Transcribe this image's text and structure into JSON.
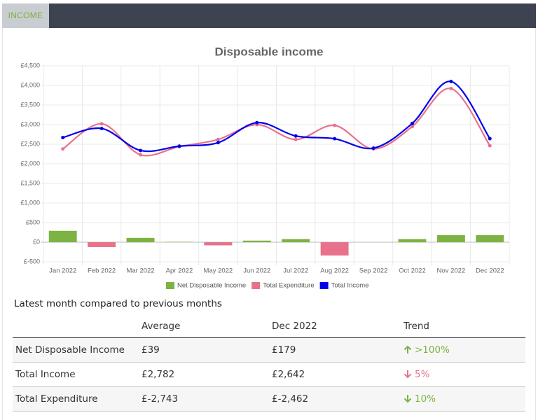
{
  "tab": "INCOME",
  "chart_data": {
    "type": "combo",
    "title": "Disposable income",
    "categories": [
      "Jan 2022",
      "Feb 2022",
      "Mar 2022",
      "Apr 2022",
      "May 2022",
      "Jun 2022",
      "Jul 2022",
      "Aug 2022",
      "Sep 2022",
      "Oct 2022",
      "Nov 2022",
      "Dec 2022"
    ],
    "series": [
      {
        "name": "Net Disposable Income",
        "type": "bar",
        "color": "#7cb342",
        "negative_color": "#e8728b",
        "values": [
          290,
          -125,
          110,
          10,
          -80,
          40,
          80,
          -340,
          0,
          80,
          180,
          179
        ]
      },
      {
        "name": "Total Expenditure",
        "type": "line",
        "color": "#e8728b",
        "values": [
          2380,
          3020,
          2230,
          2440,
          2620,
          3000,
          2620,
          2980,
          2380,
          2950,
          3920,
          2462
        ]
      },
      {
        "name": "Total Income",
        "type": "line",
        "color": "#0000ee",
        "values": [
          2670,
          2900,
          2340,
          2450,
          2540,
          3050,
          2710,
          2640,
          2400,
          3030,
          4100,
          2642
        ]
      }
    ],
    "ylim": [
      -500,
      4500
    ],
    "yticks": [
      {
        "value": -500,
        "label": "£-500"
      },
      {
        "value": 0,
        "label": "£0"
      },
      {
        "value": 500,
        "label": "£500"
      },
      {
        "value": 1000,
        "label": "£1,000"
      },
      {
        "value": 1500,
        "label": "£1,500"
      },
      {
        "value": 2000,
        "label": "£2,000"
      },
      {
        "value": 2500,
        "label": "£2,500"
      },
      {
        "value": 3000,
        "label": "£3,000"
      },
      {
        "value": 3500,
        "label": "£3,500"
      },
      {
        "value": 4000,
        "label": "£4,000"
      },
      {
        "value": 4500,
        "label": "£4,500"
      }
    ],
    "grid": true,
    "legend": "bottom"
  },
  "table": {
    "caption": "Latest month compared to previous months",
    "columns": [
      "Average",
      "Dec 2022",
      "Trend"
    ],
    "rows": [
      [
        "Net Disposable Income",
        "£39",
        "£179",
        ">100%"
      ],
      [
        "Total Income",
        "£2,782",
        "£2,642",
        "5%"
      ],
      [
        "Total Expenditure",
        "£-2,743",
        "£-2,462",
        "10%"
      ]
    ]
  }
}
